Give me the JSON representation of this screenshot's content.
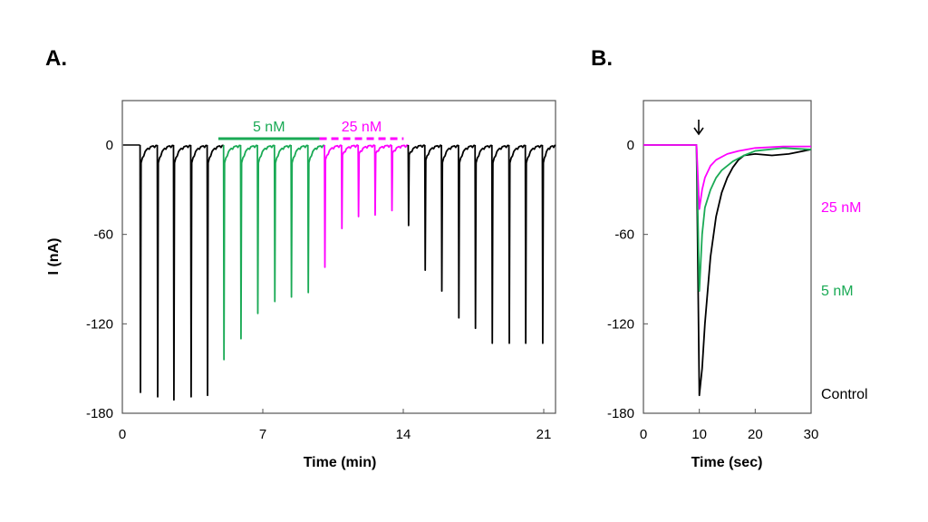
{
  "colors": {
    "control": "#000000",
    "5nM": "#1aaa55",
    "25nM": "#ff00ff"
  },
  "chart_data": [
    {
      "type": "line",
      "panel_label": "A.",
      "xlabel": "Time (min)",
      "ylabel": "I (nA)",
      "xlim": [
        0,
        21.6
      ],
      "ylim": [
        -180,
        30
      ],
      "xticks": [
        "0",
        "7",
        "14",
        "21"
      ],
      "yticks": [
        "0",
        "-60",
        "-120",
        "-180"
      ],
      "grid": false,
      "annotations": [
        {
          "text": "5 nM",
          "from": 4.75,
          "to": 9.8,
          "color": "#1aaa55",
          "style": "solid"
        },
        {
          "text": "25 nM",
          "from": 9.8,
          "to": 14.0,
          "color": "#ff00ff",
          "style": "dashed"
        }
      ],
      "series": [
        {
          "condition": "control",
          "color": "#000000",
          "peak_times": [
            0.86,
            1.72,
            2.53,
            3.39,
            4.21
          ],
          "peak_values": [
            -166,
            -169,
            -171,
            -169,
            -168
          ]
        },
        {
          "condition": "5nM",
          "color": "#1aaa55",
          "peak_times": [
            5.03,
            5.88,
            6.72,
            7.57,
            8.4,
            9.24
          ],
          "peak_values": [
            -144,
            -130,
            -113,
            -105,
            -102,
            -99
          ]
        },
        {
          "condition": "25nM",
          "color": "#ff00ff",
          "peak_times": [
            10.07,
            10.92,
            11.75,
            12.58,
            13.42
          ],
          "peak_values": [
            -82,
            -56,
            -48,
            -47,
            -44
          ]
        },
        {
          "condition": "washout",
          "color": "#000000",
          "peak_times": [
            14.25,
            15.08,
            15.91,
            16.76,
            17.59,
            18.43,
            19.28,
            20.1,
            20.95
          ],
          "peak_values": [
            -54,
            -84,
            -98,
            -116,
            -123,
            -133,
            -133,
            -133,
            -133
          ]
        }
      ]
    },
    {
      "type": "line",
      "panel_label": "B.",
      "xlabel": "Time (sec)",
      "ylabel": "",
      "xlim": [
        0,
        30
      ],
      "ylim": [
        -180,
        30
      ],
      "xticks": [
        "0",
        "10",
        "20",
        "30"
      ],
      "yticks": [
        "0",
        "-60",
        "-120",
        "-180"
      ],
      "grid": false,
      "arrow_at": 10,
      "series": [
        {
          "name": "Control",
          "color": "#000000",
          "x": [
            0,
            9.5,
            10,
            10.5,
            11,
            12,
            13,
            14,
            15,
            16,
            17,
            18,
            20,
            23,
            26,
            30
          ],
          "y": [
            0,
            0,
            -168,
            -150,
            -120,
            -75,
            -48,
            -32,
            -22,
            -15,
            -10,
            -7,
            -6,
            -7,
            -6,
            -3
          ]
        },
        {
          "name": "5 nM",
          "color": "#1aaa55",
          "x": [
            0,
            9.5,
            10,
            10.5,
            11,
            12,
            13,
            14,
            16,
            18,
            20,
            25,
            30
          ],
          "y": [
            0,
            0,
            -98,
            -60,
            -42,
            -30,
            -22,
            -17,
            -11,
            -7,
            -4,
            -2,
            -3
          ]
        },
        {
          "name": "25 nM",
          "color": "#ff00ff",
          "x": [
            0,
            9.5,
            10,
            10.5,
            11,
            12,
            13,
            15,
            17,
            20,
            25,
            30
          ],
          "y": [
            0,
            0,
            -43,
            -30,
            -22,
            -14,
            -10,
            -6,
            -4,
            -2,
            -1,
            -1
          ]
        }
      ]
    }
  ]
}
